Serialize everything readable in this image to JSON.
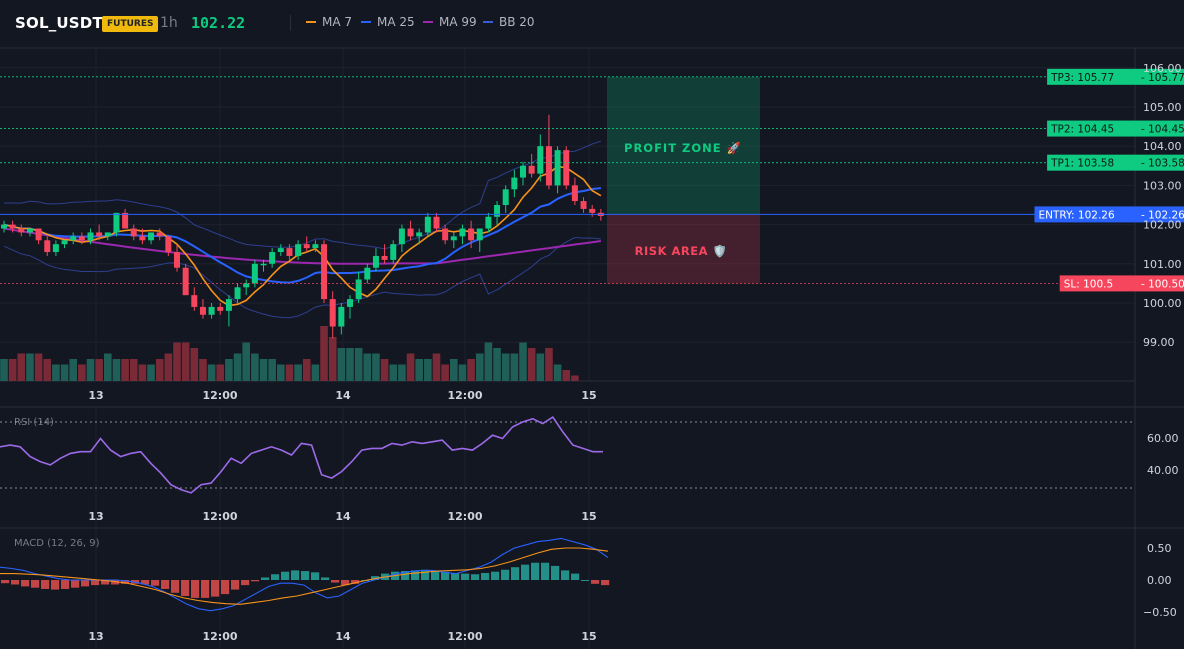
{
  "header": {
    "symbol": "SOL_USDT",
    "badge": "FUTURES",
    "timeframe": "1h",
    "price": "102.22",
    "legend": [
      {
        "label": "MA 7",
        "color": "#f7931a"
      },
      {
        "label": "MA 25",
        "color": "#2962ff"
      },
      {
        "label": "MA 99",
        "color": "#9c27b0"
      },
      {
        "label": "BB 20",
        "color": "#3b5bdb"
      }
    ]
  },
  "price_axis": {
    "labels": [
      "106.00",
      "105.00",
      "104.00",
      "103.00",
      "102.00",
      "101.00",
      "100.00",
      "99.00"
    ],
    "values": [
      106,
      105,
      104,
      103,
      102,
      101,
      100,
      99
    ]
  },
  "levels": [
    {
      "id": "tp3",
      "label": "TP3: 105.77",
      "value": "105.77",
      "price": 105.77,
      "color": "#0ecb81"
    },
    {
      "id": "tp2",
      "label": "TP2: 104.45",
      "value": "104.45",
      "price": 104.45,
      "color": "#0ecb81"
    },
    {
      "id": "tp1",
      "label": "TP1: 103.58",
      "value": "103.58",
      "price": 103.58,
      "color": "#0ecb81"
    },
    {
      "id": "entry",
      "label": "ENTRY: 102.26",
      "value": "102.26",
      "price": 102.26,
      "color": "#2962ff"
    },
    {
      "id": "sl",
      "label": "SL: 100.5",
      "value": "100.50",
      "price": 100.5,
      "color": "#f6465d"
    }
  ],
  "zones": {
    "profit_label": "PROFIT ZONE 🚀",
    "risk_label": "RISK AREA 🛡️"
  },
  "time_axis": {
    "labels": [
      "13",
      "12:00",
      "14",
      "12:00",
      "15"
    ]
  },
  "rsi": {
    "title": "RSI (14)",
    "labels": [
      "60.00",
      "40.00"
    ],
    "values": [
      55,
      56,
      55,
      49,
      46,
      44,
      48,
      51,
      52,
      52,
      60,
      53,
      49,
      51,
      52,
      45,
      39,
      32,
      29,
      27,
      32,
      33,
      40,
      48,
      45,
      51,
      53,
      55,
      53,
      50,
      57,
      56,
      38,
      36,
      40,
      46,
      53,
      54,
      54,
      57,
      56,
      58,
      57,
      58,
      59,
      53,
      54,
      53,
      57,
      62,
      60,
      67,
      70,
      72,
      69,
      73,
      64,
      56,
      54,
      52,
      52
    ]
  },
  "macd": {
    "title": "MACD (12, 26, 9)",
    "labels": [
      "0.50",
      "0.00",
      "−0.50"
    ]
  },
  "chart_data": [
    {
      "type": "candlestick",
      "title": "SOL_USDT 1h",
      "time_labels": [
        "13",
        "12:00",
        "14",
        "12:00",
        "15"
      ],
      "ylim": [
        98.2,
        106.2
      ],
      "last_price": 102.22,
      "series_names": [
        "MA 7",
        "MA 25",
        "MA 99",
        "BB 20"
      ],
      "candles": [
        [
          101.9,
          102.1,
          101.8,
          102.0
        ],
        [
          102.0,
          102.1,
          101.8,
          101.9
        ],
        [
          101.9,
          102.0,
          101.7,
          101.8
        ],
        [
          101.8,
          101.9,
          101.7,
          101.9
        ],
        [
          101.9,
          101.9,
          101.5,
          101.6
        ],
        [
          101.6,
          101.7,
          101.2,
          101.3
        ],
        [
          101.3,
          101.6,
          101.2,
          101.5
        ],
        [
          101.5,
          101.6,
          101.4,
          101.6
        ],
        [
          101.6,
          101.8,
          101.5,
          101.7
        ],
        [
          101.7,
          101.8,
          101.5,
          101.6
        ],
        [
          101.6,
          101.9,
          101.5,
          101.8
        ],
        [
          101.8,
          102.0,
          101.6,
          101.7
        ],
        [
          101.7,
          101.8,
          101.6,
          101.8
        ],
        [
          101.8,
          102.3,
          101.7,
          102.3
        ],
        [
          102.3,
          102.4,
          101.9,
          101.9
        ],
        [
          101.9,
          102.0,
          101.6,
          101.7
        ],
        [
          101.7,
          101.9,
          101.5,
          101.6
        ],
        [
          101.6,
          101.8,
          101.5,
          101.8
        ],
        [
          101.8,
          101.9,
          101.6,
          101.7
        ],
        [
          101.7,
          101.7,
          101.2,
          101.3
        ],
        [
          101.3,
          101.5,
          100.8,
          100.9
        ],
        [
          100.9,
          101.0,
          100.2,
          100.2
        ],
        [
          100.2,
          100.4,
          99.8,
          99.9
        ],
        [
          99.9,
          100.1,
          99.6,
          99.7
        ],
        [
          99.7,
          100.0,
          99.6,
          99.9
        ],
        [
          99.9,
          100.0,
          99.7,
          99.8
        ],
        [
          99.8,
          100.2,
          99.4,
          100.1
        ],
        [
          100.1,
          100.5,
          100.0,
          100.4
        ],
        [
          100.4,
          100.6,
          100.2,
          100.5
        ],
        [
          100.5,
          101.1,
          100.4,
          101.0
        ],
        [
          101.0,
          101.1,
          100.8,
          101.0
        ],
        [
          101.0,
          101.4,
          100.9,
          101.3
        ],
        [
          101.3,
          101.5,
          101.2,
          101.4
        ],
        [
          101.4,
          101.5,
          101.1,
          101.2
        ],
        [
          101.2,
          101.6,
          101.1,
          101.5
        ],
        [
          101.5,
          101.7,
          101.3,
          101.4
        ],
        [
          101.4,
          101.6,
          101.3,
          101.5
        ],
        [
          101.5,
          101.6,
          100.0,
          100.1
        ],
        [
          100.1,
          100.3,
          99.1,
          99.4
        ],
        [
          99.4,
          100.0,
          99.2,
          99.9
        ],
        [
          99.9,
          100.2,
          99.6,
          100.1
        ],
        [
          100.1,
          100.8,
          100.0,
          100.6
        ],
        [
          100.6,
          101.0,
          100.5,
          100.9
        ],
        [
          100.9,
          101.4,
          100.8,
          101.2
        ],
        [
          101.2,
          101.5,
          101.0,
          101.1
        ],
        [
          101.1,
          101.6,
          101.0,
          101.5
        ],
        [
          101.5,
          102.0,
          101.3,
          101.9
        ],
        [
          101.9,
          102.1,
          101.6,
          101.7
        ],
        [
          101.7,
          101.9,
          101.5,
          101.8
        ],
        [
          101.8,
          102.3,
          101.7,
          102.2
        ],
        [
          102.2,
          102.3,
          101.8,
          101.9
        ],
        [
          101.9,
          102.0,
          101.5,
          101.6
        ],
        [
          101.6,
          101.8,
          101.4,
          101.7
        ],
        [
          101.7,
          102.0,
          101.5,
          101.9
        ],
        [
          101.9,
          102.1,
          101.4,
          101.6
        ],
        [
          101.6,
          101.9,
          101.3,
          101.9
        ],
        [
          101.9,
          102.3,
          101.8,
          102.2
        ],
        [
          102.2,
          102.6,
          102.0,
          102.5
        ],
        [
          102.5,
          103.0,
          102.3,
          102.9
        ],
        [
          102.9,
          103.4,
          102.7,
          103.2
        ],
        [
          103.2,
          103.6,
          103.0,
          103.5
        ],
        [
          103.5,
          103.8,
          103.2,
          103.3
        ],
        [
          103.3,
          104.3,
          103.1,
          104.0
        ],
        [
          104.0,
          104.8,
          102.9,
          103.0
        ],
        [
          103.0,
          104.0,
          102.8,
          103.9
        ],
        [
          103.9,
          104.0,
          102.9,
          103.0
        ],
        [
          103.0,
          103.2,
          102.5,
          102.6
        ],
        [
          102.6,
          102.7,
          102.3,
          102.4
        ],
        [
          102.4,
          102.5,
          102.2,
          102.3
        ],
        [
          102.3,
          102.4,
          102.1,
          102.22
        ]
      ],
      "volume": [
        4,
        4,
        5,
        5,
        5,
        4,
        3,
        3,
        4,
        3,
        4,
        4,
        5,
        4,
        4,
        4,
        3,
        3,
        4,
        5,
        7,
        7,
        6,
        4,
        3,
        3,
        4,
        5,
        7,
        5,
        4,
        4,
        3,
        3,
        3,
        4,
        3,
        10,
        8,
        6,
        6,
        6,
        5,
        5,
        4,
        3,
        3,
        5,
        4,
        4,
        5,
        3,
        4,
        3,
        4,
        5,
        7,
        6,
        5,
        5,
        7,
        6,
        5,
        6,
        3,
        2,
        1
      ]
    },
    {
      "type": "line",
      "title": "RSI (14)",
      "ylim": [
        20,
        80
      ],
      "values": [
        55,
        56,
        55,
        49,
        46,
        44,
        48,
        51,
        52,
        52,
        60,
        53,
        49,
        51,
        52,
        45,
        39,
        32,
        29,
        27,
        32,
        33,
        40,
        48,
        45,
        51,
        53,
        55,
        53,
        50,
        57,
        56,
        38,
        36,
        40,
        46,
        53,
        54,
        54,
        57,
        56,
        58,
        57,
        58,
        59,
        53,
        54,
        53,
        57,
        62,
        60,
        67,
        70,
        72,
        69,
        73,
        64,
        56,
        54,
        52,
        52
      ]
    },
    {
      "type": "bar",
      "title": "MACD (12, 26, 9)",
      "ylim": [
        -0.7,
        0.8
      ],
      "histogram": [
        -0.05,
        -0.07,
        -0.1,
        -0.12,
        -0.14,
        -0.15,
        -0.14,
        -0.12,
        -0.1,
        -0.08,
        -0.07,
        -0.07,
        -0.06,
        -0.06,
        -0.07,
        -0.09,
        -0.14,
        -0.2,
        -0.25,
        -0.28,
        -0.28,
        -0.26,
        -0.22,
        -0.15,
        -0.08,
        -0.02,
        0.04,
        0.09,
        0.13,
        0.15,
        0.14,
        0.12,
        0.04,
        -0.04,
        -0.08,
        -0.06,
        0.0,
        0.06,
        0.1,
        0.13,
        0.14,
        0.15,
        0.16,
        0.15,
        0.13,
        0.11,
        0.1,
        0.09,
        0.11,
        0.13,
        0.16,
        0.2,
        0.24,
        0.27,
        0.27,
        0.22,
        0.15,
        0.1,
        0.0,
        -0.06,
        -0.08
      ],
      "macd_line": [
        0.2,
        0.18,
        0.15,
        0.1,
        0.06,
        0.02,
        0.0,
        0.0,
        0.0,
        0.0,
        0.0,
        -0.02,
        -0.05,
        -0.1,
        -0.18,
        -0.28,
        -0.38,
        -0.45,
        -0.48,
        -0.45,
        -0.4,
        -0.3,
        -0.2,
        -0.1,
        -0.05,
        -0.05,
        -0.08,
        -0.2,
        -0.28,
        -0.25,
        -0.15,
        -0.05,
        0.0,
        0.05,
        0.1,
        0.13,
        0.15,
        0.15,
        0.12,
        0.1,
        0.15,
        0.2,
        0.28,
        0.4,
        0.5,
        0.55,
        0.6,
        0.62,
        0.65,
        0.6,
        0.55,
        0.48,
        0.35
      ],
      "signal_line": [
        0.1,
        0.1,
        0.09,
        0.08,
        0.06,
        0.04,
        0.02,
        0.0,
        -0.02,
        -0.05,
        -0.1,
        -0.15,
        -0.22,
        -0.28,
        -0.32,
        -0.35,
        -0.37,
        -0.38,
        -0.35,
        -0.32,
        -0.28,
        -0.25,
        -0.2,
        -0.15,
        -0.1,
        -0.05,
        0.0,
        0.04,
        0.07,
        0.1,
        0.12,
        0.14,
        0.15,
        0.16,
        0.18,
        0.22,
        0.28,
        0.35,
        0.42,
        0.48,
        0.5,
        0.5,
        0.48,
        0.45
      ]
    }
  ]
}
